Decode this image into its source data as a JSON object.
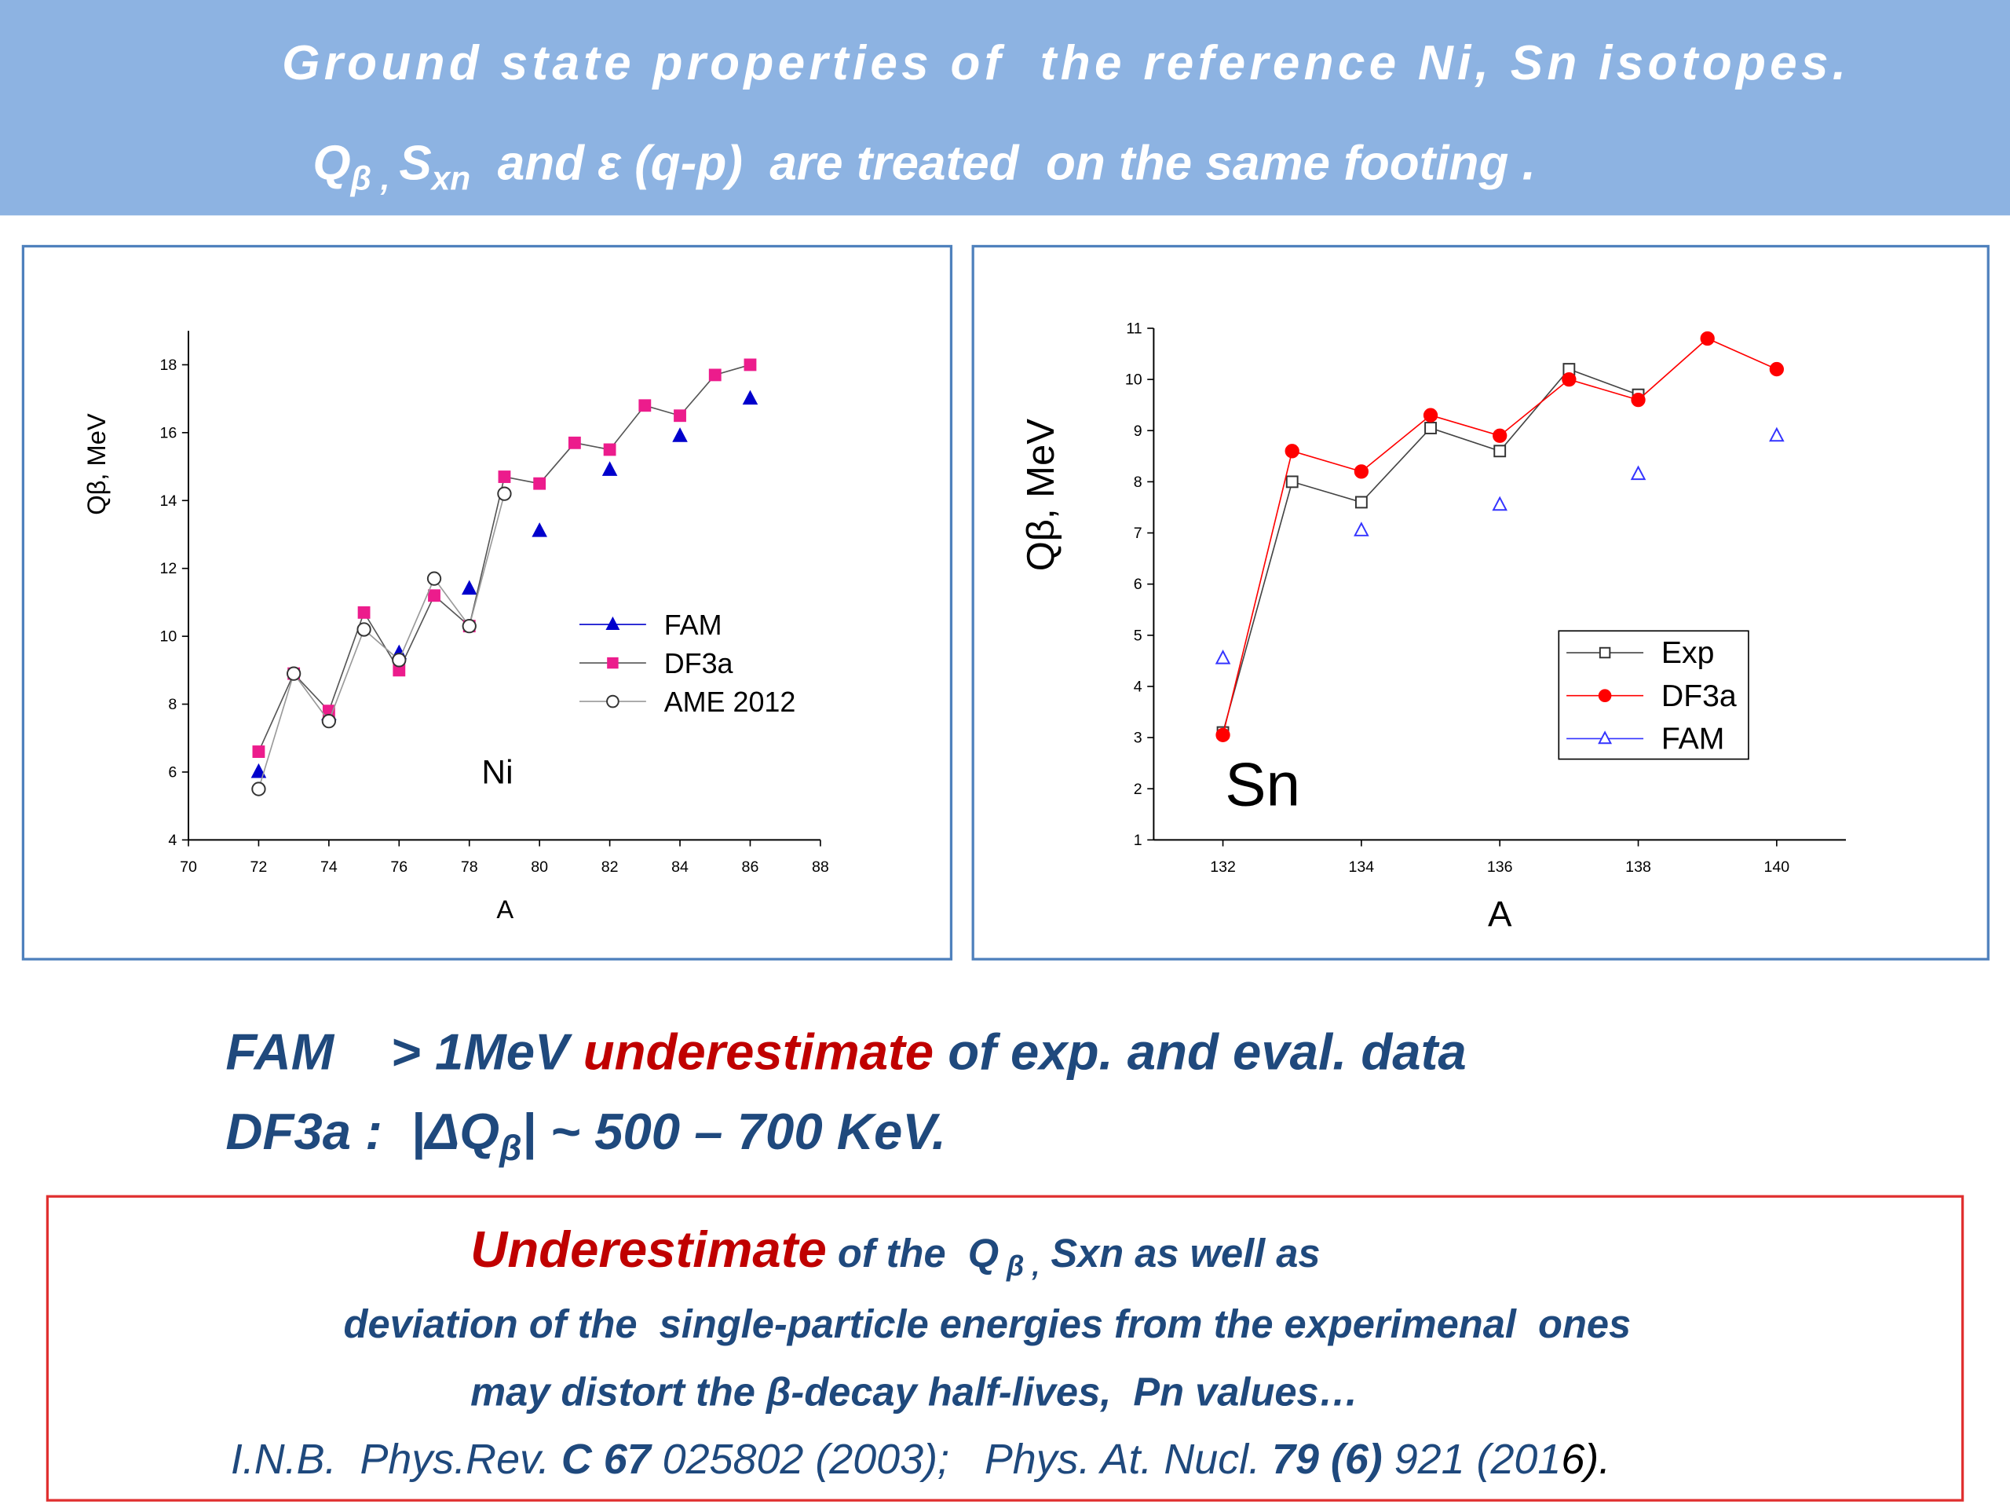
{
  "header": {
    "line1": "Ground state properties of  the reference Ni, Sn isotopes.",
    "line2": [
      "Q",
      "β , ",
      "S",
      "xn",
      "  and ε (q-p)  are treated  on the same footing ."
    ]
  },
  "chart_data": [
    {
      "type": "line",
      "y_label": "Qβ, MeV",
      "x_label": "A",
      "annotation": "Ni",
      "xlim": [
        70,
        88
      ],
      "xticks": [
        70,
        72,
        74,
        76,
        78,
        80,
        82,
        84,
        86,
        88
      ],
      "ylim": [
        4,
        19
      ],
      "yticks": [
        4,
        6,
        8,
        10,
        12,
        14,
        16,
        18
      ],
      "series": [
        {
          "name": "FAM",
          "color": "#0000cc",
          "marker": "triangle",
          "line": false,
          "x": [
            72,
            74,
            76,
            78,
            80,
            82,
            84,
            86
          ],
          "values": [
            6.0,
            7.7,
            9.5,
            11.4,
            13.1,
            14.9,
            15.9,
            17.0
          ]
        },
        {
          "name": "DF3a",
          "color": "#ec1c8c",
          "line_color": "#555555",
          "marker": "square",
          "line": true,
          "x": [
            72,
            73,
            74,
            75,
            76,
            77,
            78,
            79,
            80,
            81,
            82,
            83,
            84,
            85,
            86
          ],
          "values": [
            6.6,
            8.9,
            7.8,
            10.7,
            9.0,
            11.2,
            10.3,
            14.7,
            14.5,
            15.7,
            15.5,
            16.8,
            16.5,
            17.7,
            18.0
          ]
        },
        {
          "name": "AME 2012",
          "color": "#333333",
          "line_color": "#999999",
          "marker": "circle-open",
          "line": true,
          "x": [
            72,
            73,
            74,
            75,
            76,
            77,
            78,
            79
          ],
          "values": [
            5.5,
            8.9,
            7.5,
            10.2,
            9.3,
            11.7,
            10.3,
            14.2
          ]
        }
      ]
    },
    {
      "type": "line",
      "y_label": "Qβ, MeV",
      "x_label": "A",
      "annotation": "Sn",
      "xlim": [
        131,
        141
      ],
      "xticks": [
        132,
        134,
        136,
        138,
        140
      ],
      "ylim": [
        1,
        11
      ],
      "yticks": [
        1,
        2,
        3,
        4,
        5,
        6,
        7,
        8,
        9,
        10,
        11
      ],
      "series": [
        {
          "name": "Exp",
          "color": "#333333",
          "line_color": "#444444",
          "marker": "square-open",
          "line": true,
          "x": [
            132,
            133,
            134,
            135,
            136,
            137,
            138
          ],
          "values": [
            3.1,
            8.0,
            7.6,
            9.05,
            8.6,
            10.2,
            9.7
          ]
        },
        {
          "name": "DF3a",
          "color": "#ff0000",
          "line_color": "#ff0000",
          "marker": "circle",
          "line": true,
          "x": [
            132,
            133,
            134,
            135,
            136,
            137,
            138,
            139,
            140
          ],
          "values": [
            3.05,
            8.6,
            8.2,
            9.3,
            8.9,
            10.0,
            9.6,
            10.8,
            10.2
          ]
        },
        {
          "name": "FAM",
          "color": "#3333ff",
          "marker": "triangle-open",
          "line": false,
          "x": [
            132,
            134,
            136,
            138,
            140
          ],
          "values": [
            4.55,
            7.05,
            7.55,
            8.15,
            8.9
          ]
        }
      ]
    }
  ],
  "summary": {
    "line1": [
      "FAM    > 1MeV ",
      "underestimate",
      " of exp. and eval. data"
    ],
    "line2": [
      "DF3a :  |ΔQ",
      "β",
      "| ~ 500 – 700 KeV."
    ]
  },
  "note": {
    "line1": [
      "Underestimate",
      " of the  Q",
      " β ,",
      " Sxn as well as"
    ],
    "line2": "deviation of the  single-particle energies from the experimenal  ones",
    "line3": "may distort the β-decay half-lives,  Pn values…",
    "line4": [
      "I.N.B.  Phys.Rev. ",
      "C 67",
      " 025802 (2003);   Phys. At. Nucl. ",
      "79 (6)",
      " 921 (201",
      "6",
      ")."
    ]
  }
}
